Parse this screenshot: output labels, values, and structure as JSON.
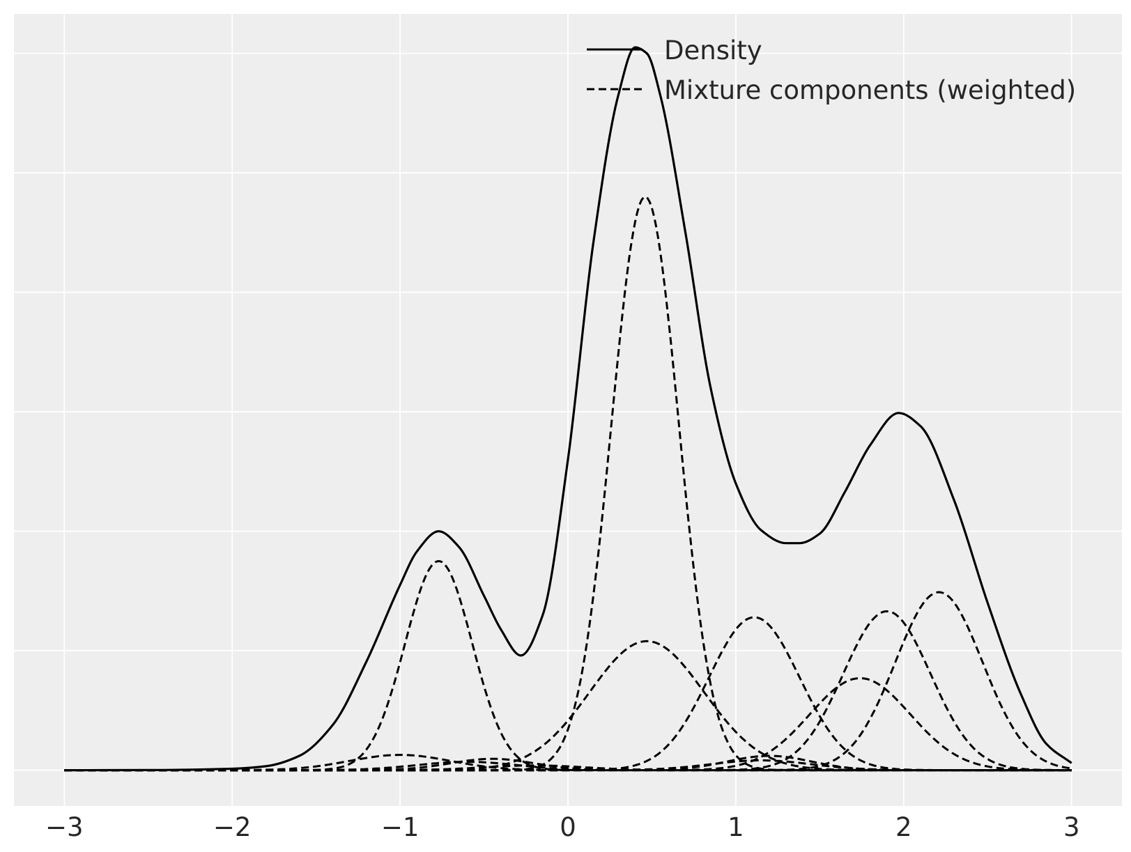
{
  "chart_data": {
    "type": "line",
    "xlim": [
      -3.3,
      3.3
    ],
    "ylim": [
      -0.03,
      0.633
    ],
    "xticks": [
      -3,
      -2,
      -1,
      0,
      1,
      2,
      3
    ],
    "xtick_labels": [
      "−3",
      "−2",
      "−1",
      "0",
      "1",
      "2",
      "3"
    ],
    "yticks": [
      0,
      0.1,
      0.2,
      0.3,
      0.4,
      0.5,
      0.6
    ],
    "ytick_labels_shown": false,
    "grid": true,
    "background": "#EEEEEE",
    "line_color": "#000000",
    "legend": {
      "position": "top-right",
      "entries": [
        {
          "label": "Density",
          "style": "solid"
        },
        {
          "label": "Mixture components (weighted)",
          "style": "dashed"
        }
      ]
    },
    "density": {
      "name": "Density",
      "style": "solid",
      "x": [
        -3.0,
        -2.5,
        -2.0,
        -1.8,
        -1.6,
        -1.4,
        -1.2,
        -1.0,
        -0.9,
        -0.77,
        -0.65,
        -0.5,
        -0.4,
        -0.28,
        -0.15,
        0.0,
        0.15,
        0.3,
        0.4,
        0.47,
        0.55,
        0.7,
        0.85,
        1.0,
        1.15,
        1.3,
        1.38,
        1.5,
        1.65,
        1.8,
        1.97,
        2.1,
        2.3,
        2.5,
        2.7,
        2.85,
        3.0
      ],
      "y": [
        0.0,
        0.0001,
        0.0012,
        0.0033,
        0.012,
        0.038,
        0.091,
        0.155,
        0.183,
        0.2,
        0.187,
        0.146,
        0.118,
        0.096,
        0.13,
        0.26,
        0.44,
        0.565,
        0.605,
        0.6,
        0.565,
        0.45,
        0.32,
        0.24,
        0.201,
        0.19,
        0.19,
        0.198,
        0.233,
        0.272,
        0.299,
        0.288,
        0.226,
        0.14,
        0.063,
        0.022,
        0.006
      ]
    },
    "components": {
      "mu": [
        0.46,
        0.47,
        -0.77,
        1.11,
        1.9,
        2.21,
        1.74,
        -1.0,
        -0.45,
        1.2,
        1.15,
        -0.6,
        -0.2
      ],
      "sigma": [
        0.2,
        0.34,
        0.2,
        0.27,
        0.26,
        0.26,
        0.3,
        0.3,
        0.25,
        0.25,
        0.3,
        0.3,
        0.3
      ],
      "peak": [
        0.48,
        0.108,
        0.175,
        0.128,
        0.133,
        0.149,
        0.077,
        0.0128,
        0.0095,
        0.012,
        0.0082,
        0.007,
        0.004
      ]
    }
  }
}
